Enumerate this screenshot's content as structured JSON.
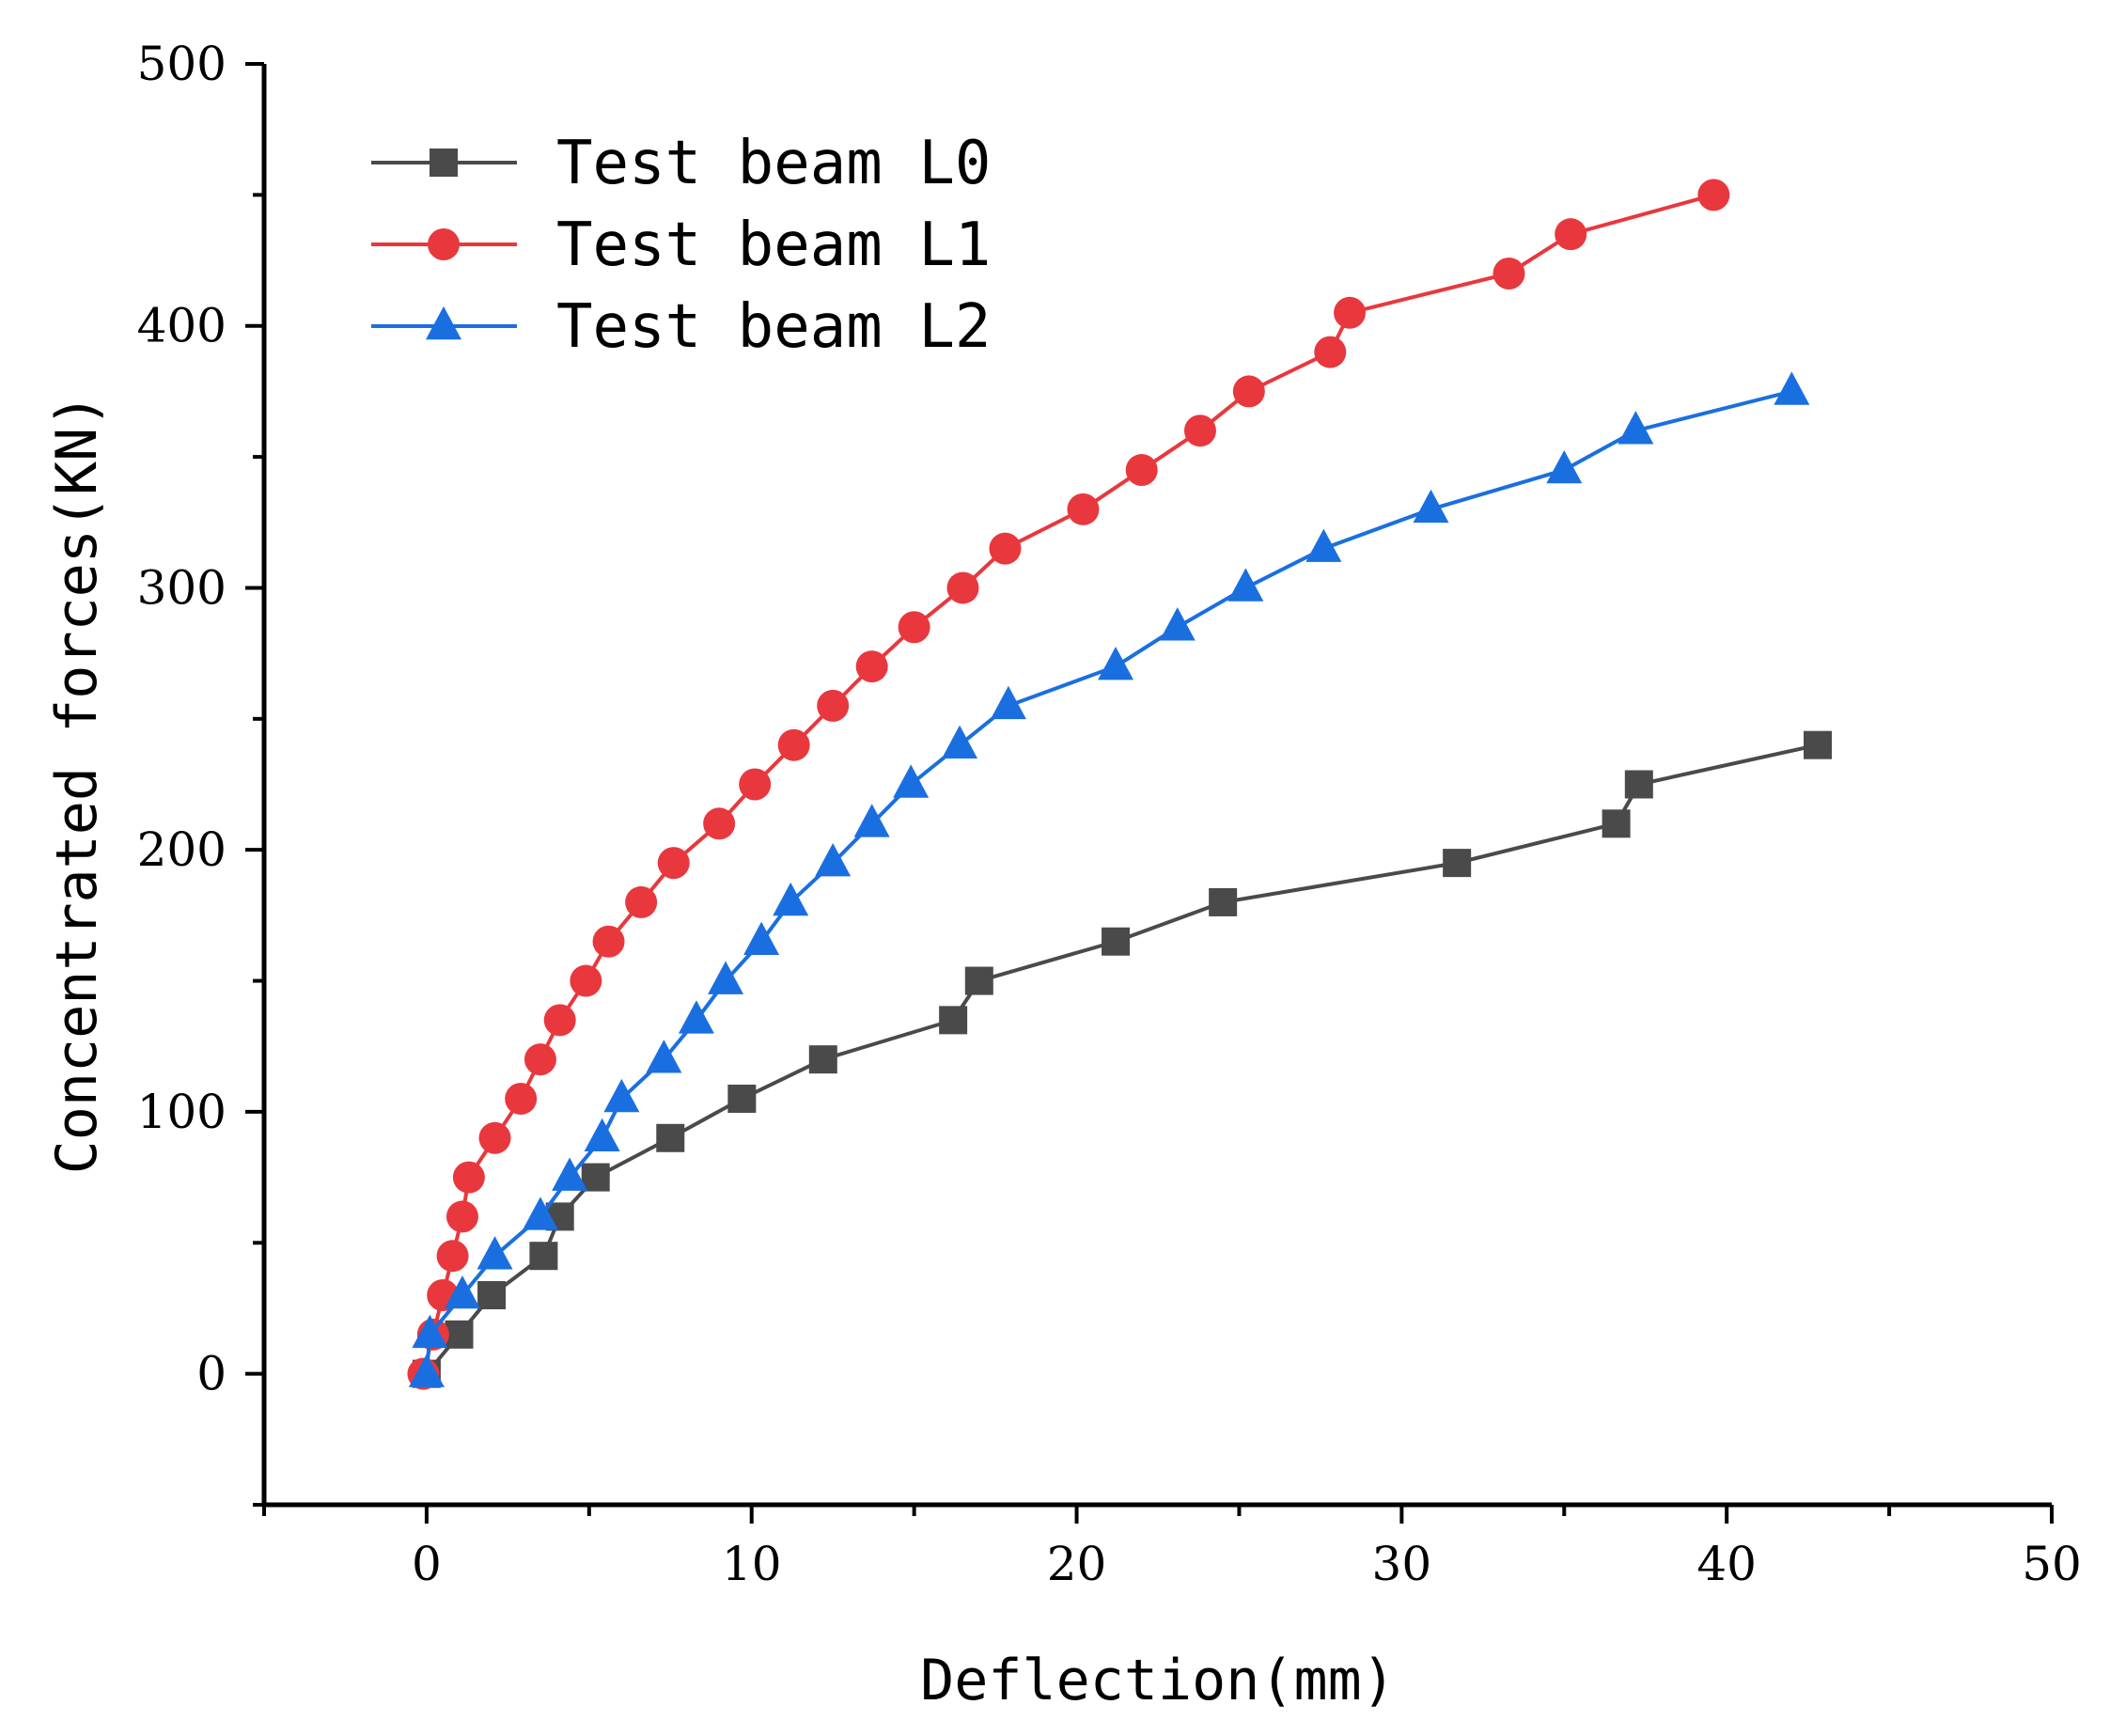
{
  "chart_data": {
    "type": "line",
    "title": "",
    "xlabel": "Deflection(mm)",
    "ylabel": "Concentrated forces(KN)",
    "xlim": [
      -5,
      50
    ],
    "ylim": [
      -50,
      500
    ],
    "xticks": [
      0,
      10,
      20,
      30,
      40,
      50
    ],
    "yticks": [
      0,
      100,
      200,
      300,
      400,
      500
    ],
    "xtick_labels": [
      "0",
      "10",
      "20",
      "30",
      "40",
      "50"
    ],
    "ytick_labels": [
      "0",
      "100",
      "200",
      "300",
      "400",
      "500"
    ],
    "legend_position": "top-left",
    "series": [
      {
        "name": "Test beam L0",
        "color": "#4a4a4a",
        "marker": "square",
        "x": [
          0,
          1.0,
          2.0,
          3.6,
          4.1,
          5.2,
          7.5,
          9.7,
          12.2,
          16.2,
          17.0,
          21.2,
          24.5,
          31.7,
          36.6,
          37.3,
          42.8
        ],
        "y": [
          0,
          15,
          30,
          45,
          60,
          75,
          90,
          105,
          120,
          135,
          150,
          165,
          180,
          195,
          210,
          225,
          240
        ]
      },
      {
        "name": "Test beam L1",
        "color": "#e8383d",
        "marker": "circle",
        "x": [
          -0.1,
          0.2,
          0.5,
          0.8,
          1.1,
          1.3,
          2.1,
          2.9,
          3.5,
          4.1,
          4.9,
          5.6,
          6.6,
          7.6,
          9.0,
          10.1,
          11.3,
          12.5,
          13.7,
          15.0,
          16.5,
          17.8,
          20.2,
          22.0,
          23.8,
          25.3,
          27.8,
          28.4,
          33.3,
          35.2,
          39.6
        ],
        "y": [
          0,
          15,
          30,
          45,
          60,
          75,
          90,
          105,
          120,
          135,
          150,
          165,
          180,
          195,
          210,
          225,
          240,
          255,
          270,
          285,
          300,
          315,
          330,
          345,
          360,
          375,
          390,
          405,
          420,
          435,
          450
        ]
      },
      {
        "name": "Test beam L2",
        "color": "#1a6fe0",
        "marker": "triangle",
        "x": [
          0,
          0.1,
          1.1,
          2.1,
          3.5,
          4.4,
          5.4,
          6.0,
          7.3,
          8.3,
          9.2,
          10.3,
          11.2,
          12.5,
          13.7,
          14.9,
          16.4,
          17.9,
          21.2,
          23.1,
          25.2,
          27.6,
          30.9,
          35.0,
          37.2,
          42.0
        ],
        "y": [
          0,
          15,
          30,
          45,
          60,
          75,
          90,
          105,
          120,
          135,
          150,
          165,
          180,
          195,
          210,
          225,
          240,
          255,
          270,
          285,
          300,
          315,
          330,
          345,
          360,
          375
        ]
      }
    ]
  }
}
